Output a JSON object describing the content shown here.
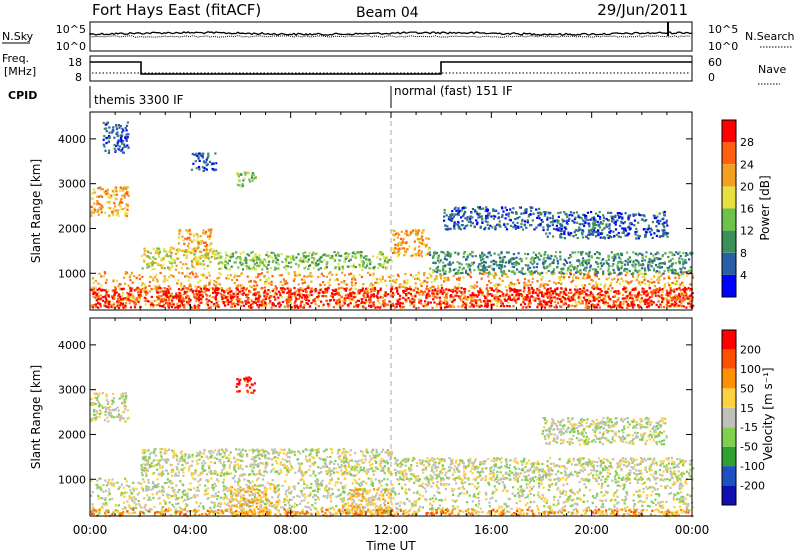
{
  "header": {
    "station": "Fort Hays East (fitACF)",
    "beam": "Beam 04",
    "date": "29/Jun/2011"
  },
  "top_panels": {
    "nsky_label": "N.Sky",
    "nsearch_label": "N.Search",
    "nsky_ticks": [
      "10^5",
      "10^0"
    ],
    "nsearch_ticks": [
      "10^5",
      "10^0"
    ],
    "freq_label": "Freq.",
    "freq_unit": "[MHz]",
    "freq_ticks": [
      "18",
      "8"
    ],
    "nave_label": "Nave",
    "nave_ticks": [
      "60",
      "0"
    ],
    "cpid_label": "CPID",
    "cpid_segments": [
      {
        "start_hour": 0,
        "label": "themis 3300 IF"
      },
      {
        "start_hour": 12,
        "label": "normal (fast) 151 IF"
      }
    ]
  },
  "chart_data": [
    {
      "type": "heatmap",
      "title": "",
      "xlabel": "",
      "ylabel": "Slant Range [km]",
      "xlim": [
        0,
        24
      ],
      "ylim": [
        180,
        4600
      ],
      "y_ticks": [
        1000,
        2000,
        3000,
        4000
      ],
      "colorbar_label": "Power [dB]",
      "colorbar_ticks": [
        "4",
        "8",
        "12",
        "16",
        "20",
        "24",
        "28"
      ],
      "colorbar_colors": [
        "#0000ff",
        "#2a5fa8",
        "#3d8f5a",
        "#6cc24a",
        "#e8e040",
        "#f2a020",
        "#ff6010",
        "#ff0000"
      ],
      "regions": [
        {
          "t_start": 0.0,
          "t_end": 24.0,
          "r_start": 250,
          "r_end": 1050,
          "level": 5
        },
        {
          "t_start": 0.0,
          "t_end": 24.0,
          "r_start": 250,
          "r_end": 700,
          "level": 7
        },
        {
          "t_start": 0.0,
          "t_end": 1.5,
          "r_start": 2300,
          "r_end": 2950,
          "level": 5
        },
        {
          "t_start": 0.5,
          "t_end": 1.5,
          "r_start": 3700,
          "r_end": 4400,
          "level": 1
        },
        {
          "t_start": 4.0,
          "t_end": 5.0,
          "r_start": 3300,
          "r_end": 3700,
          "level": 1
        },
        {
          "t_start": 5.8,
          "t_end": 6.6,
          "r_start": 2950,
          "r_end": 3300,
          "level": 3
        },
        {
          "t_start": 2.0,
          "t_end": 5.0,
          "r_start": 1100,
          "r_end": 1600,
          "level": 4
        },
        {
          "t_start": 3.5,
          "t_end": 4.8,
          "r_start": 1500,
          "r_end": 2000,
          "level": 5
        },
        {
          "t_start": 5.0,
          "t_end": 12.0,
          "r_start": 1100,
          "r_end": 1500,
          "level": 3
        },
        {
          "t_start": 12.0,
          "t_end": 13.5,
          "r_start": 1400,
          "r_end": 2000,
          "level": 5
        },
        {
          "t_start": 13.5,
          "t_end": 24.0,
          "r_start": 1000,
          "r_end": 1500,
          "level": 2
        },
        {
          "t_start": 14.0,
          "t_end": 18.0,
          "r_start": 2000,
          "r_end": 2500,
          "level": 1
        },
        {
          "t_start": 18.0,
          "t_end": 23.0,
          "r_start": 1800,
          "r_end": 2400,
          "level": 1
        }
      ]
    },
    {
      "type": "heatmap",
      "title": "",
      "xlabel": "Time UT",
      "ylabel": "Slant Range [km]",
      "xlim": [
        0,
        24
      ],
      "ylim": [
        180,
        4600
      ],
      "x_ticks": [
        "00:00",
        "04:00",
        "08:00",
        "12:00",
        "16:00",
        "20:00",
        "00:00"
      ],
      "y_ticks": [
        1000,
        2000,
        3000,
        4000
      ],
      "colorbar_label": "Velocity [m s⁻¹]",
      "colorbar_ticks": [
        "200",
        "100",
        "50",
        "15",
        "-15",
        "-50",
        "-100",
        "-200"
      ],
      "colorbar_colors": [
        "#1010b0",
        "#2050c0",
        "#30a030",
        "#80d050",
        "#c0c0b8",
        "#ffd040",
        "#ff9000",
        "#ff5000",
        "#ff0000"
      ],
      "regions": [
        {
          "t_start": 0.0,
          "t_end": 24.0,
          "r_start": 250,
          "r_end": 1050,
          "level": 4
        },
        {
          "t_start": 0.0,
          "t_end": 1.5,
          "r_start": 2300,
          "r_end": 2950,
          "level": 4
        },
        {
          "t_start": 5.5,
          "t_end": 7.5,
          "r_start": 200,
          "r_end": 900,
          "level": 5
        },
        {
          "t_start": 10.0,
          "t_end": 12.0,
          "r_start": 200,
          "r_end": 800,
          "level": 5
        },
        {
          "t_start": 0.0,
          "t_end": 24.0,
          "r_start": 200,
          "r_end": 350,
          "level": 6
        },
        {
          "t_start": 5.8,
          "t_end": 6.6,
          "r_start": 2950,
          "r_end": 3300,
          "level": 8
        },
        {
          "t_start": 2.0,
          "t_end": 12.0,
          "r_start": 1100,
          "r_end": 1700,
          "level": 4
        },
        {
          "t_start": 12.0,
          "t_end": 24.0,
          "r_start": 1000,
          "r_end": 1500,
          "level": 4
        },
        {
          "t_start": 18.0,
          "t_end": 23.0,
          "r_start": 1800,
          "r_end": 2400,
          "level": 4
        }
      ]
    }
  ]
}
